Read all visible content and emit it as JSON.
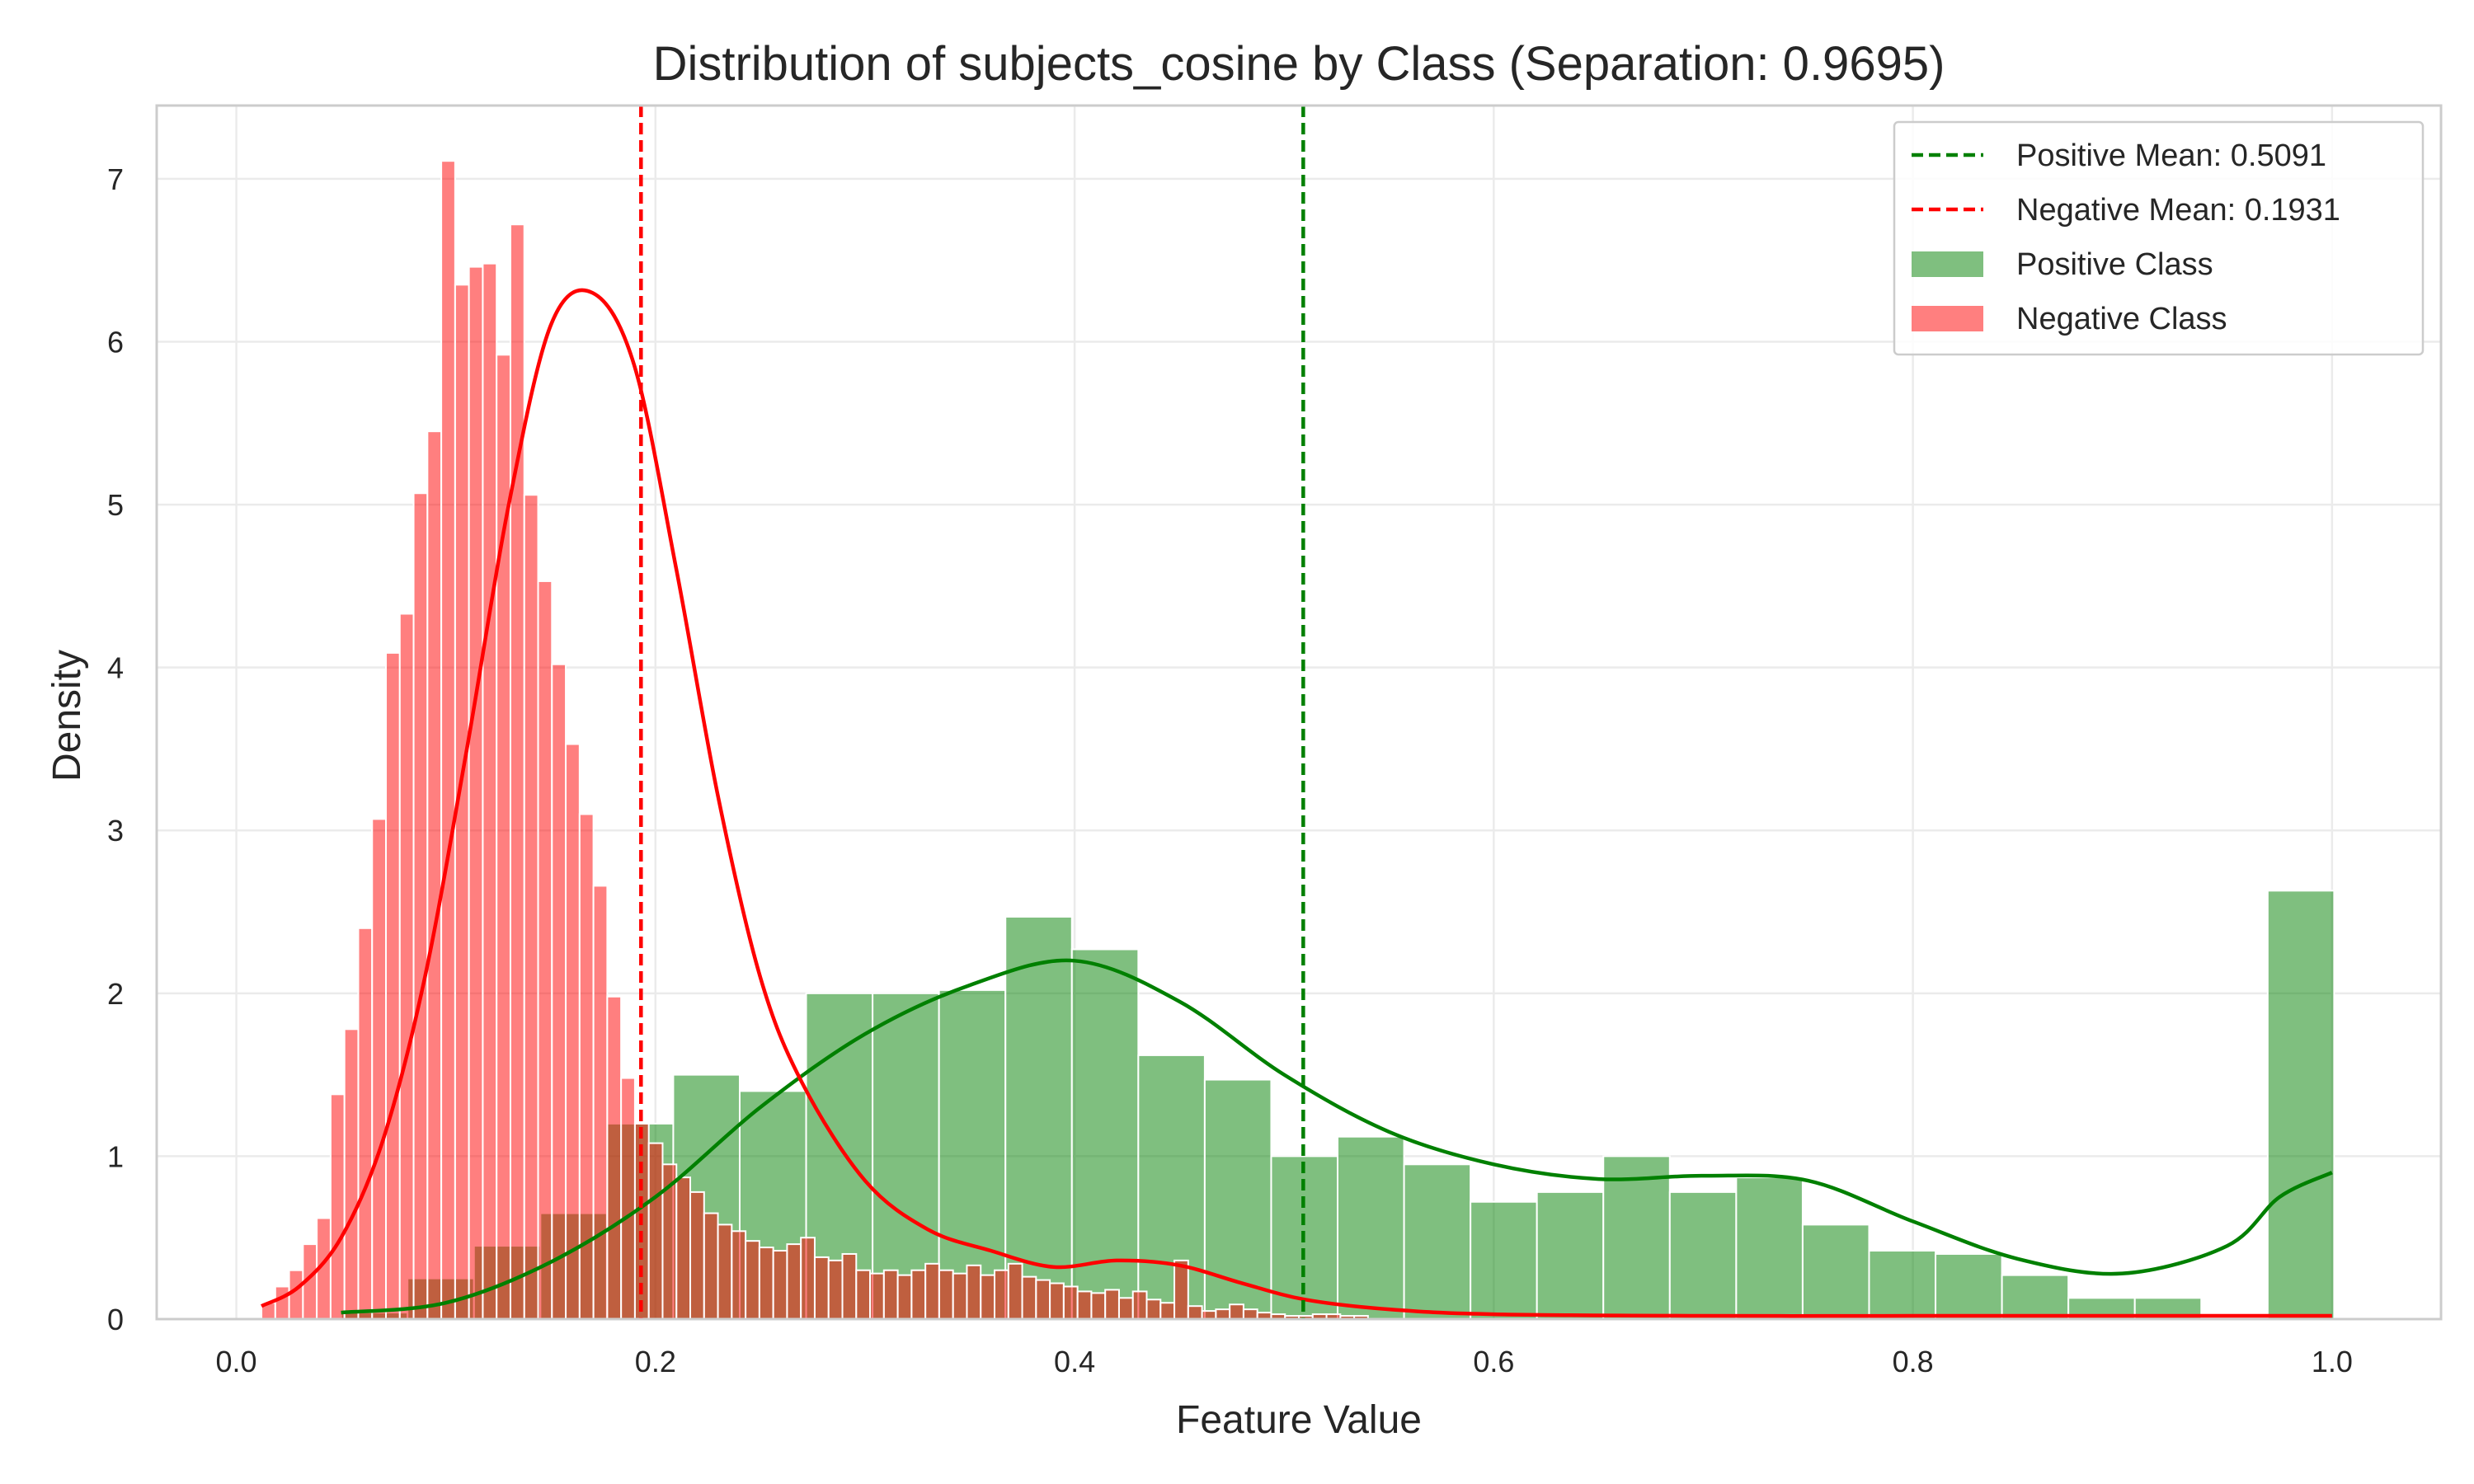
{
  "chart_data": {
    "type": "histogram",
    "title": "Distribution of subjects_cosine by Class (Separation: 0.9695)",
    "xlabel": "Feature Value",
    "ylabel": "Density",
    "xlim": [
      -0.038,
      1.052
    ],
    "ylim": [
      0,
      7.45
    ],
    "x_ticks": [
      0.0,
      0.2,
      0.4,
      0.6,
      0.8,
      1.0
    ],
    "x_tick_labels": [
      "0.0",
      "0.2",
      "0.4",
      "0.6",
      "0.8",
      "1.0"
    ],
    "y_ticks": [
      0,
      1,
      2,
      3,
      4,
      5,
      6,
      7
    ],
    "y_tick_labels": [
      "0",
      "1",
      "2",
      "3",
      "4",
      "5",
      "6",
      "7"
    ],
    "grid": true,
    "legend_position": "top-right",
    "colors": {
      "positive": "#008000",
      "negative": "#ff0000",
      "axes_edge": "#cccccc",
      "grid": "#ebebeb"
    },
    "legend": [
      {
        "label": "Positive Mean: 0.5091",
        "kind": "dashed-line",
        "color": "#008000"
      },
      {
        "label": "Negative Mean: 0.1931",
        "kind": "dashed-line",
        "color": "#ff0000"
      },
      {
        "label": "Positive Class",
        "kind": "patch",
        "color": "#008000"
      },
      {
        "label": "Negative Class",
        "kind": "patch",
        "color": "#ff0000"
      }
    ],
    "means": {
      "positive": 0.5091,
      "negative": 0.1931
    },
    "series": [
      {
        "name": "Positive Class",
        "bin_start": 0.05,
        "bin_width": 0.0317,
        "values": [
          0.04,
          0.25,
          0.45,
          0.65,
          1.2,
          1.5,
          1.4,
          2.0,
          2.0,
          2.02,
          2.47,
          2.27,
          1.62,
          1.47,
          1.0,
          1.12,
          0.95,
          0.72,
          0.78,
          1.0,
          0.78,
          0.87,
          0.58,
          0.42,
          0.4,
          0.27,
          0.13,
          0.13,
          0.0,
          2.63
        ]
      },
      {
        "name": "Negative Class",
        "bin_start": 0.012,
        "bin_width": 0.0066,
        "values": [
          0.1,
          0.2,
          0.3,
          0.46,
          0.62,
          1.38,
          1.78,
          2.4,
          3.07,
          4.09,
          4.33,
          5.07,
          5.45,
          7.11,
          6.35,
          6.46,
          6.48,
          5.92,
          6.72,
          5.06,
          4.53,
          4.02,
          3.53,
          3.1,
          2.66,
          1.98,
          1.48,
          1.2,
          1.08,
          0.95,
          0.87,
          0.78,
          0.65,
          0.58,
          0.54,
          0.48,
          0.44,
          0.42,
          0.46,
          0.5,
          0.38,
          0.36,
          0.4,
          0.3,
          0.28,
          0.3,
          0.27,
          0.3,
          0.34,
          0.3,
          0.28,
          0.33,
          0.27,
          0.3,
          0.34,
          0.26,
          0.24,
          0.22,
          0.2,
          0.17,
          0.16,
          0.18,
          0.13,
          0.17,
          0.12,
          0.1,
          0.36,
          0.08,
          0.05,
          0.06,
          0.09,
          0.06,
          0.04,
          0.03,
          0.02,
          0.02,
          0.03,
          0.03,
          0.02,
          0.02
        ]
      }
    ],
    "kde": [
      {
        "name": "Positive Class",
        "x": [
          0.05,
          0.1,
          0.15,
          0.2,
          0.25,
          0.3,
          0.35,
          0.4,
          0.45,
          0.5,
          0.55,
          0.6,
          0.65,
          0.7,
          0.75,
          0.8,
          0.85,
          0.9,
          0.95,
          0.975,
          1.0
        ],
        "y": [
          0.04,
          0.1,
          0.35,
          0.75,
          1.3,
          1.75,
          2.05,
          2.2,
          1.95,
          1.5,
          1.15,
          0.95,
          0.86,
          0.88,
          0.85,
          0.6,
          0.37,
          0.28,
          0.45,
          0.75,
          0.9
        ]
      },
      {
        "name": "Negative Class",
        "x": [
          0.012,
          0.03,
          0.05,
          0.07,
          0.09,
          0.11,
          0.13,
          0.15,
          0.17,
          0.19,
          0.21,
          0.23,
          0.25,
          0.27,
          0.3,
          0.33,
          0.36,
          0.39,
          0.42,
          0.45,
          0.48,
          0.51,
          0.55,
          0.6,
          0.7,
          0.8,
          0.9,
          1.0
        ],
        "y": [
          0.08,
          0.2,
          0.5,
          1.1,
          2.1,
          3.5,
          5.0,
          6.1,
          6.3,
          5.85,
          4.6,
          3.2,
          2.1,
          1.45,
          0.85,
          0.55,
          0.42,
          0.32,
          0.36,
          0.33,
          0.22,
          0.12,
          0.06,
          0.03,
          0.02,
          0.02,
          0.02,
          0.02
        ]
      }
    ]
  }
}
